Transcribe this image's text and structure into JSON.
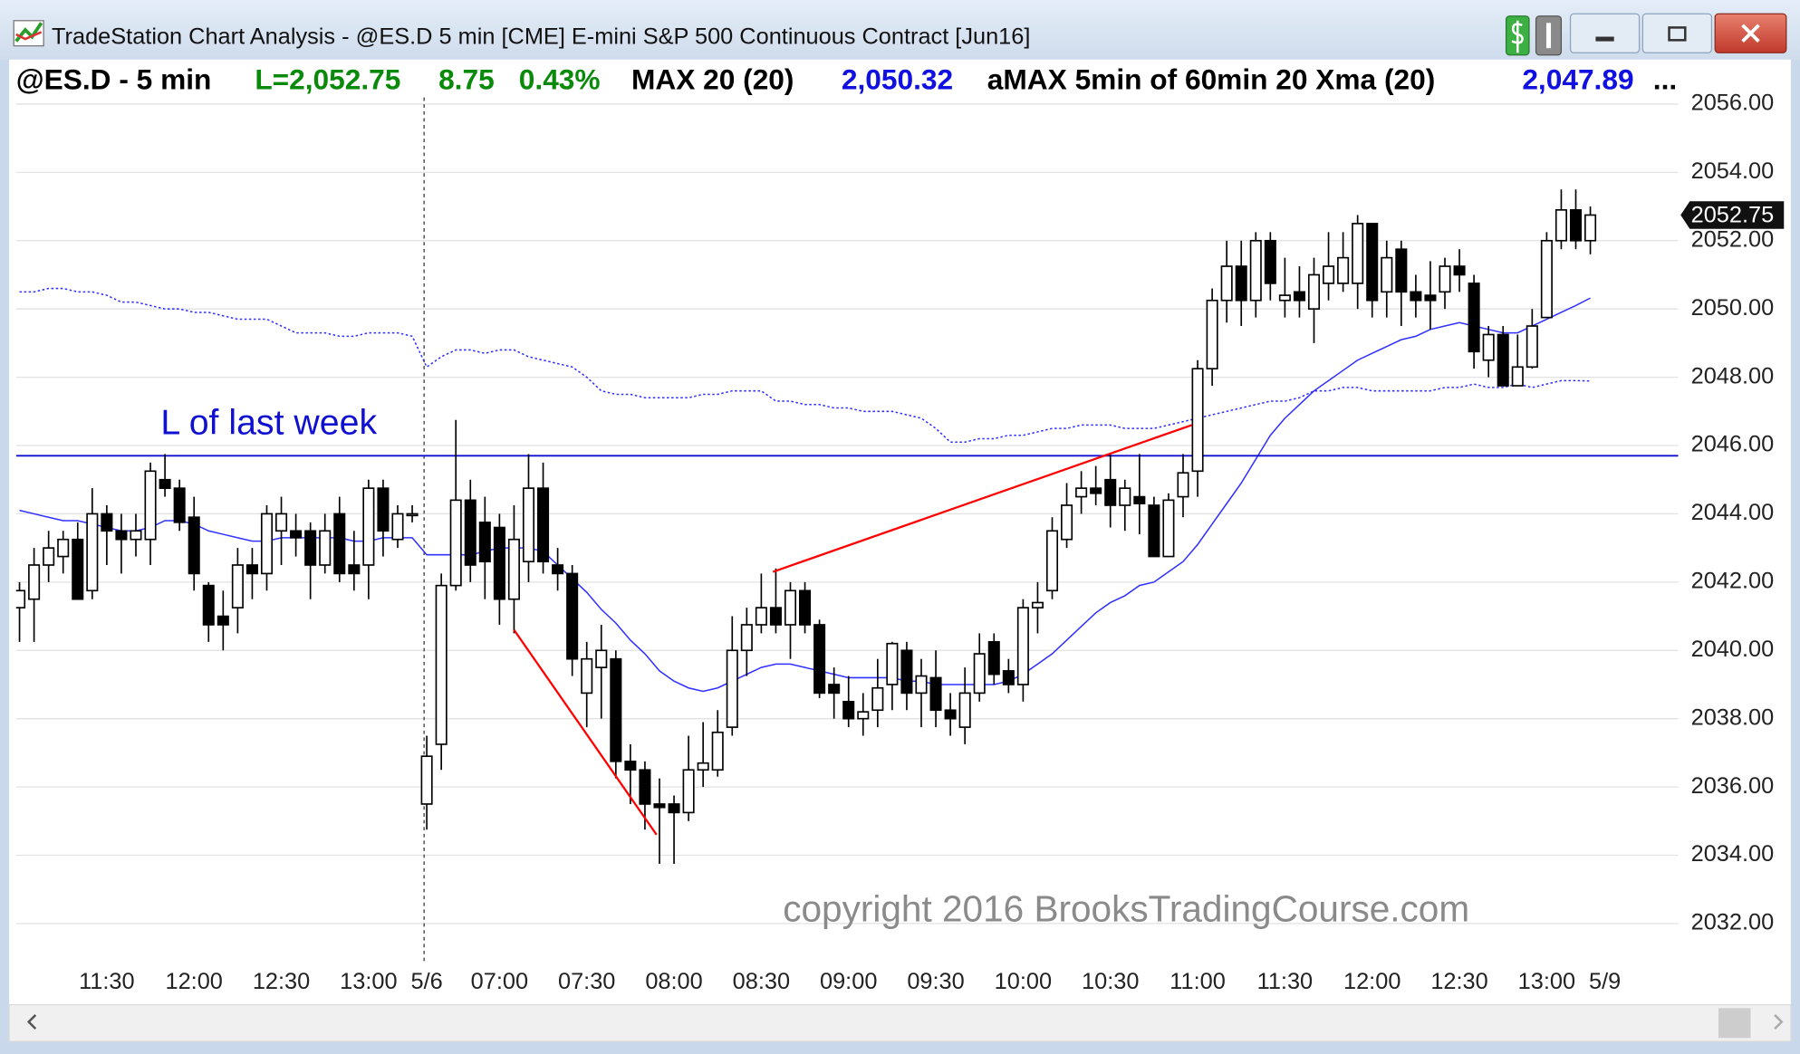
{
  "window_title": "TradeStation Chart Analysis - @ES.D 5 min [CME] E-mini S&P 500 Continuous Contract [Jun16]",
  "chart_data": {
    "type": "candlestick",
    "grid": true,
    "header": {
      "symbol": "@ES.D - 5 min",
      "last": "L=2,052.75",
      "change": "8.75",
      "change_pct": "0.43%",
      "ellipsis": "..."
    },
    "price_tag": "2052.75",
    "watermark": "copyright 2016 BrooksTradingCourse.com",
    "ylim": [
      2030.9,
      2057.1
    ],
    "yticks": [
      {
        "value": 2032,
        "label": "2032.00"
      },
      {
        "value": 2034,
        "label": "2034.00"
      },
      {
        "value": 2036,
        "label": "2036.00"
      },
      {
        "value": 2038,
        "label": "2038.00"
      },
      {
        "value": 2040,
        "label": "2040.00"
      },
      {
        "value": 2042,
        "label": "2042.00"
      },
      {
        "value": 2044,
        "label": "2044.00"
      },
      {
        "value": 2046,
        "label": "2046.00"
      },
      {
        "value": 2048,
        "label": "2048.00"
      },
      {
        "value": 2050,
        "label": "2050.00"
      },
      {
        "value": 2052,
        "label": "2052.00"
      },
      {
        "value": 2054,
        "label": "2054.00"
      },
      {
        "value": 2056,
        "label": "2056.00"
      }
    ],
    "categories": [
      null,
      null,
      null,
      null,
      null,
      null,
      "11:30",
      null,
      null,
      null,
      null,
      null,
      "12:00",
      null,
      null,
      null,
      null,
      null,
      "12:30",
      null,
      null,
      null,
      null,
      null,
      "13:00",
      null,
      null,
      null,
      "5/6",
      null,
      null,
      null,
      null,
      "07:00",
      null,
      null,
      null,
      null,
      null,
      "07:30",
      null,
      null,
      null,
      null,
      null,
      "08:00",
      null,
      null,
      null,
      null,
      null,
      "08:30",
      null,
      null,
      null,
      null,
      null,
      "09:00",
      null,
      null,
      null,
      null,
      null,
      "09:30",
      null,
      null,
      null,
      null,
      null,
      "10:00",
      null,
      null,
      null,
      null,
      null,
      "10:30",
      null,
      null,
      null,
      null,
      null,
      "11:00",
      null,
      null,
      null,
      null,
      null,
      "11:30",
      null,
      null,
      null,
      null,
      null,
      "12:00",
      null,
      null,
      null,
      null,
      null,
      "12:30",
      null,
      null,
      null,
      null,
      null,
      "13:00",
      null,
      null,
      null
    ],
    "next_session_label": "5/9",
    "candles": {
      "up_color": "#ffffff",
      "down_color": "#000000",
      "open": [
        2041.25,
        2041.5,
        2042.5,
        2042.75,
        2043.25,
        2041.75,
        2044,
        2043.5,
        2043.25,
        2043.25,
        2045,
        2044.75,
        2043.9,
        2041.9,
        2041,
        2041.25,
        2042.5,
        2042.25,
        2043.5,
        2043.5,
        2043.5,
        2042.5,
        2044,
        2042.5,
        2042.5,
        2044.75,
        2043.25,
        2044,
        2035.5,
        2037.25,
        2041.9,
        2044.4,
        2043.75,
        2043.6,
        2041.5,
        2042.6,
        2044.75,
        2042.5,
        2042.25,
        2038.75,
        2039.5,
        2039.75,
        2036.75,
        2036.5,
        2035.5,
        2035.5,
        2035.25,
        2036.5,
        2036.5,
        2037.75,
        2040,
        2040.75,
        2041.25,
        2040.75,
        2041.75,
        2040.75,
        2039,
        2038.5,
        2038,
        2038.25,
        2039,
        2040,
        2038.75,
        2039.2,
        2038.25,
        2037.75,
        2038.75,
        2040.25,
        2039.4,
        2039,
        2041.25,
        2041.75,
        2043.25,
        2044.5,
        2044.75,
        2045,
        2044.25,
        2044.5,
        2044.25,
        2042.75,
        2044.5,
        2045.25,
        2048.25,
        2050.25,
        2051.25,
        2050.25,
        2052,
        2050.25,
        2050.5,
        2050,
        2050.75,
        2050.75,
        2050.75,
        2052.5,
        2050.5,
        2051.75,
        2050.5,
        2050.4,
        2050.5,
        2051.25,
        2050.75,
        2048.5,
        2049.25,
        2047.75,
        2048.3,
        2049.75,
        2052,
        2052.9,
        2052
      ],
      "high": [
        2042,
        2043,
        2043.5,
        2043.5,
        2043.75,
        2044.75,
        2044.25,
        2044,
        2044,
        2045.5,
        2045.75,
        2045,
        2044.5,
        2042,
        2041.75,
        2043,
        2043,
        2044.25,
        2044.5,
        2044,
        2043.75,
        2044,
        2044.5,
        2043.5,
        2045,
        2045,
        2044.25,
        2044.25,
        2037.5,
        2042.25,
        2046.75,
        2045,
        2044.5,
        2044,
        2044.25,
        2045.75,
        2045.5,
        2043,
        2042.5,
        2040.25,
        2040.75,
        2040,
        2037.25,
        2036.75,
        2036.25,
        2035.75,
        2037.5,
        2037.9,
        2038.25,
        2041,
        2041.25,
        2042.25,
        2042.4,
        2042,
        2042,
        2040.9,
        2039.5,
        2039.25,
        2038.75,
        2039.75,
        2040.25,
        2040.25,
        2039.75,
        2040,
        2038.75,
        2039.5,
        2040.5,
        2040.5,
        2039.75,
        2041.5,
        2042,
        2043.9,
        2044.9,
        2045.25,
        2045.4,
        2045.75,
        2045,
        2045.75,
        2044.5,
        2044.6,
        2045.75,
        2048.5,
        2050.6,
        2052,
        2052,
        2052.25,
        2052.25,
        2051.5,
        2051.25,
        2051.5,
        2052.25,
        2052.25,
        2052.75,
        2052.5,
        2052,
        2052,
        2051,
        2051.4,
        2051.5,
        2051.75,
        2051,
        2049.5,
        2049.5,
        2049.25,
        2050,
        2052.25,
        2053.5,
        2053.5,
        2053
      ],
      "low": [
        2040.25,
        2040.25,
        2042,
        2042.25,
        2041.5,
        2041.5,
        2042.5,
        2042.25,
        2042.75,
        2042.5,
        2044.5,
        2043.5,
        2041.75,
        2040.25,
        2040,
        2040.5,
        2041.5,
        2041.75,
        2042.5,
        2042.75,
        2041.5,
        2042.25,
        2042,
        2041.75,
        2041.5,
        2042.75,
        2043,
        2043.75,
        2034.75,
        2036.5,
        2041.75,
        2042,
        2041.5,
        2040.75,
        2040.5,
        2042,
        2042.25,
        2041.75,
        2039.25,
        2037.75,
        2038,
        2036.25,
        2035.5,
        2034.75,
        2033.75,
        2033.75,
        2035,
        2036,
        2036.3,
        2037.5,
        2039.25,
        2040.5,
        2040.5,
        2039.75,
        2040.5,
        2038.6,
        2038,
        2037.75,
        2037.5,
        2037.75,
        2038.25,
        2038.25,
        2037.75,
        2037.75,
        2037.5,
        2037.25,
        2038.5,
        2039,
        2038.75,
        2038.5,
        2040.5,
        2041.5,
        2043,
        2044,
        2044.25,
        2043.6,
        2043.5,
        2043.4,
        2042.75,
        2042.75,
        2043.9,
        2044.5,
        2047.75,
        2049.6,
        2049.5,
        2049.75,
        2050.25,
        2049.75,
        2049.75,
        2049,
        2050.25,
        2050.5,
        2050,
        2049.75,
        2049.75,
        2049.5,
        2049.75,
        2049.4,
        2050,
        2050.5,
        2048.25,
        2048,
        2047.75,
        2047.75,
        2048.25,
        2049.75,
        2051.75,
        2051.75,
        2051.6
      ],
      "close": [
        2041.75,
        2042.5,
        2043,
        2043.25,
        2041.5,
        2044,
        2043.5,
        2043.25,
        2043.5,
        2045.25,
        2044.75,
        2043.75,
        2042.25,
        2040.75,
        2040.75,
        2042.5,
        2042.25,
        2044,
        2044,
        2043.3,
        2042.5,
        2043.5,
        2042.25,
        2042.25,
        2044.75,
        2043.5,
        2044,
        2044,
        2036.9,
        2041.9,
        2044.4,
        2042.5,
        2042.6,
        2041.5,
        2043.25,
        2044.75,
        2042.6,
        2042.25,
        2039.75,
        2039.75,
        2040,
        2036.75,
        2036.5,
        2035.5,
        2035.4,
        2035.25,
        2036.5,
        2036.7,
        2037.6,
        2040,
        2040.75,
        2041.25,
        2040.75,
        2041.75,
        2040.75,
        2038.75,
        2038.75,
        2038,
        2038.2,
        2038.9,
        2040.2,
        2038.75,
        2039.25,
        2038.25,
        2038,
        2038.75,
        2039.9,
        2039.3,
        2039,
        2041.25,
        2041.4,
        2043.5,
        2044.25,
        2044.75,
        2044.6,
        2044.25,
        2044.75,
        2044.3,
        2042.75,
        2044.4,
        2045.2,
        2048.25,
        2050.25,
        2051.25,
        2050.25,
        2052,
        2050.75,
        2050.4,
        2050.25,
        2051,
        2051.25,
        2051.5,
        2052.5,
        2050.25,
        2051.5,
        2050.5,
        2050.25,
        2050.25,
        2051.25,
        2051,
        2048.75,
        2049.25,
        2047.75,
        2048.3,
        2049.5,
        2052,
        2052.9,
        2052,
        2052.75
      ]
    },
    "series": [
      {
        "name": "MAX 20 (20)",
        "value_label": "2,050.32",
        "color": "#3030ff",
        "style": "solid",
        "values": [
          2044.1,
          2044.0,
          2043.9,
          2043.8,
          2043.8,
          2043.7,
          2043.6,
          2043.5,
          2043.5,
          2043.6,
          2043.8,
          2043.8,
          2043.7,
          2043.5,
          2043.4,
          2043.3,
          2043.2,
          2043.2,
          2043.3,
          2043.3,
          2043.3,
          2043.3,
          2043.3,
          2043.2,
          2043.2,
          2043.3,
          2043.3,
          2043.3,
          2042.8,
          2042.8,
          2042.8,
          2042.8,
          2042.9,
          2043.0,
          2043.0,
          2043.0,
          2042.9,
          2042.5,
          2042.1,
          2041.7,
          2041.2,
          2040.8,
          2040.3,
          2039.9,
          2039.4,
          2039.1,
          2038.9,
          2038.8,
          2038.9,
          2039.1,
          2039.3,
          2039.5,
          2039.6,
          2039.6,
          2039.5,
          2039.4,
          2039.3,
          2039.2,
          2039.2,
          2039.2,
          2039.2,
          2039.1,
          2039.1,
          2039.0,
          2039.0,
          2039.0,
          2039.0,
          2039.0,
          2039.1,
          2039.3,
          2039.6,
          2039.9,
          2040.3,
          2040.7,
          2041.1,
          2041.4,
          2041.6,
          2041.9,
          2042.0,
          2042.3,
          2042.6,
          2043.1,
          2043.7,
          2044.3,
          2044.9,
          2045.6,
          2046.3,
          2046.8,
          2047.2,
          2047.6,
          2047.9,
          2048.2,
          2048.5,
          2048.7,
          2048.9,
          2049.1,
          2049.2,
          2049.4,
          2049.5,
          2049.6,
          2049.5,
          2049.4,
          2049.3,
          2049.3,
          2049.5,
          2049.7,
          2049.9,
          2050.1,
          2050.32
        ]
      },
      {
        "name": "aMAX 5min of 60min 20 Xma (20)",
        "value_label": "2,047.89",
        "color": "#3030ff",
        "style": "dotted",
        "values": [
          2050.5,
          2050.5,
          2050.6,
          2050.6,
          2050.5,
          2050.5,
          2050.4,
          2050.2,
          2050.2,
          2050.1,
          2050.0,
          2050.0,
          2049.9,
          2049.9,
          2049.8,
          2049.7,
          2049.7,
          2049.7,
          2049.5,
          2049.3,
          2049.3,
          2049.3,
          2049.2,
          2049.2,
          2049.3,
          2049.3,
          2049.3,
          2049.2,
          2048.3,
          2048.6,
          2048.8,
          2048.8,
          2048.7,
          2048.8,
          2048.8,
          2048.6,
          2048.5,
          2048.4,
          2048.3,
          2048.0,
          2047.6,
          2047.5,
          2047.5,
          2047.4,
          2047.4,
          2047.4,
          2047.4,
          2047.5,
          2047.5,
          2047.6,
          2047.6,
          2047.6,
          2047.3,
          2047.3,
          2047.2,
          2047.2,
          2047.1,
          2047.1,
          2047.0,
          2047.0,
          2047.0,
          2046.9,
          2046.8,
          2046.5,
          2046.1,
          2046.1,
          2046.2,
          2046.2,
          2046.3,
          2046.3,
          2046.4,
          2046.5,
          2046.5,
          2046.6,
          2046.6,
          2046.6,
          2046.5,
          2046.5,
          2046.5,
          2046.6,
          2046.7,
          2046.8,
          2046.9,
          2047.0,
          2047.1,
          2047.2,
          2047.3,
          2047.3,
          2047.4,
          2047.6,
          2047.6,
          2047.7,
          2047.7,
          2047.6,
          2047.6,
          2047.6,
          2047.6,
          2047.6,
          2047.7,
          2047.7,
          2047.8,
          2047.7,
          2047.7,
          2047.8,
          2047.7,
          2047.8,
          2047.9,
          2047.9,
          2047.89
        ]
      }
    ],
    "level": {
      "label": "L of last week",
      "value": 2045.7,
      "color": "#1010d0"
    },
    "trend_lines": [
      {
        "color": "#ff0000",
        "points": [
          [
            34,
            2040.6
          ],
          [
            43.8,
            2034.6
          ]
        ]
      },
      {
        "color": "#ff0000",
        "points": [
          [
            51.8,
            2042.3
          ],
          [
            80.6,
            2046.6
          ]
        ]
      }
    ]
  }
}
